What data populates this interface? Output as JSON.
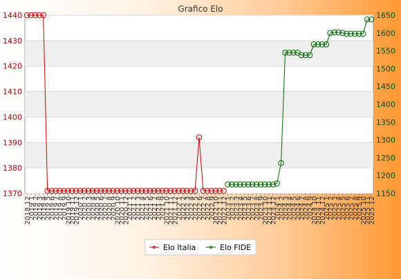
{
  "chart_data": {
    "type": "line",
    "title": "Grafico Elo",
    "x": [
      "2018 12",
      "2019 1",
      "2019 2",
      "2019 3",
      "2019 4",
      "2019 5",
      "2019 6",
      "2019 7",
      "2019 8",
      "2019 9",
      "2019 10",
      "2019 11",
      "2019 12",
      "2020 1",
      "2020 2",
      "2020 3",
      "2020 4",
      "2020 5",
      "2020 6",
      "2020 7",
      "2020 8",
      "2020 9",
      "2020 10",
      "2020 11",
      "2020 12",
      "2021 1",
      "2021 2",
      "2021 3",
      "2021 4",
      "2021 5",
      "2021 6",
      "2021 7",
      "2021 8",
      "2021 9",
      "2021 10",
      "2021 11",
      "2021 12",
      "2022 1",
      "2022 2",
      "2022 3",
      "2022 4",
      "2022 5",
      "2022 6",
      "2022 7",
      "2022 8",
      "2022 9",
      "2022 10",
      "2022 11",
      "2022 12",
      "2023 1",
      "2023 2",
      "2023 3",
      "2023 4",
      "2023 5",
      "2023 6",
      "2023 7",
      "2023 8",
      "2023 9",
      "2023 10",
      "2023 11",
      "2023 12",
      "2024 1",
      "2024 2",
      "2024 3",
      "2024 4",
      "2024 5",
      "2024 6",
      "2024 7",
      "2024 8",
      "2024 9",
      "2024 10",
      "2024 11",
      "2024 12",
      "2025 1",
      "2025 2",
      "2025 3",
      "2025 4",
      "2025 5",
      "2025 6",
      "2025 7",
      "2025 8",
      "2025 9",
      "2025 10",
      "2025 11",
      "2025 12"
    ],
    "series": [
      {
        "name": "Elo Italia",
        "color": "#cc0000",
        "axis": "left",
        "values": [
          1440,
          1440,
          1440,
          1440,
          1440,
          1371,
          1371,
          1371,
          1371,
          1371,
          1371,
          1371,
          1371,
          1371,
          1371,
          1371,
          1371,
          1371,
          1371,
          1371,
          1371,
          1371,
          1371,
          1371,
          1371,
          1371,
          1371,
          1371,
          1371,
          1371,
          1371,
          1371,
          1371,
          1371,
          1371,
          1371,
          1371,
          1371,
          1371,
          1371,
          1371,
          1371,
          1392,
          1371,
          1371,
          1371,
          1371,
          1371,
          1371,
          null,
          null,
          null,
          null,
          null,
          null,
          null,
          null,
          null,
          null,
          null,
          null,
          null,
          null,
          null,
          null,
          null,
          null,
          null,
          null,
          null,
          null,
          null,
          null,
          null,
          null,
          null,
          null,
          null,
          null,
          null,
          null,
          null,
          null,
          null,
          null
        ]
      },
      {
        "name": "Elo FIDE",
        "color": "#006600",
        "axis": "right",
        "values": [
          null,
          null,
          null,
          null,
          null,
          null,
          null,
          null,
          null,
          null,
          null,
          null,
          null,
          null,
          null,
          null,
          null,
          null,
          null,
          null,
          null,
          null,
          null,
          null,
          null,
          null,
          null,
          null,
          null,
          null,
          null,
          null,
          null,
          null,
          null,
          null,
          null,
          null,
          null,
          null,
          null,
          null,
          null,
          null,
          null,
          null,
          null,
          null,
          null,
          1175,
          1175,
          1175,
          1175,
          1175,
          1175,
          1175,
          1175,
          1175,
          1175,
          1175,
          1175,
          1178,
          1235,
          1545,
          1545,
          1545,
          1545,
          1538,
          1538,
          1538,
          1568,
          1568,
          1568,
          1568,
          1600,
          1602,
          1602,
          1600,
          1598,
          1598,
          1598,
          1598,
          1598,
          1638,
          1638
        ]
      }
    ],
    "ylim_left": [
      1370,
      1440
    ],
    "yticks_left": [
      1370,
      1380,
      1390,
      1400,
      1410,
      1420,
      1430,
      1440
    ],
    "ylim_right": [
      1150,
      1650
    ],
    "yticks_right": [
      1150,
      1200,
      1250,
      1300,
      1350,
      1400,
      1450,
      1500,
      1550,
      1600,
      1650
    ],
    "grid": true,
    "legend_position": "bottom"
  }
}
